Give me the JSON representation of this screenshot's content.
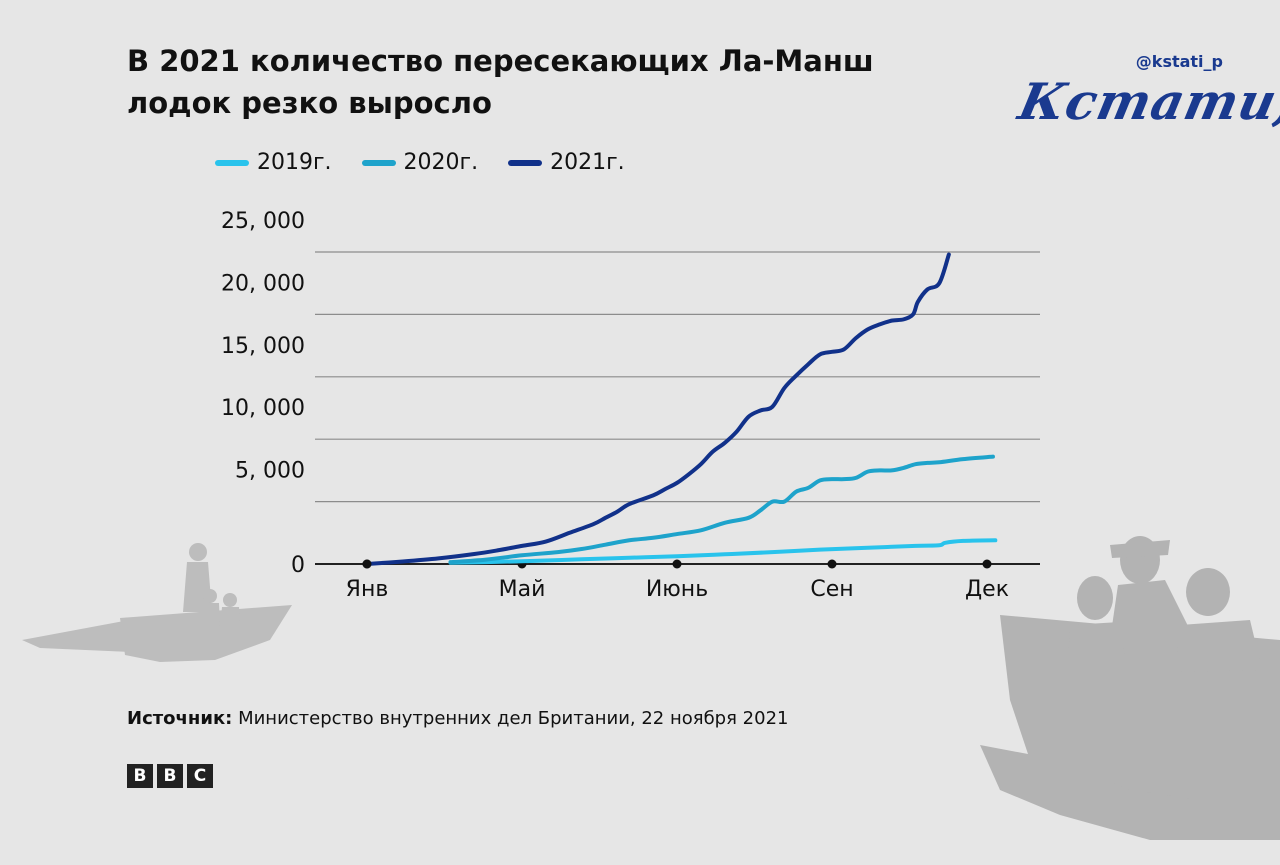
{
  "header": {
    "title_line1": "В 2021 количество пересекающих Ла-Манш",
    "title_line2": "лодок резко выросло",
    "handle": "@kstati_p",
    "logo": "Кстати,"
  },
  "footer": {
    "source_label": "Источник:",
    "source_text": " Министерство внутренних дел Британии, 22 ноября 2021",
    "bbc_letters": [
      "B",
      "B",
      "C"
    ]
  },
  "chart_data": {
    "type": "line",
    "title": "",
    "xlabel": "",
    "ylabel": "",
    "ylim": [
      0,
      25000
    ],
    "yticks": [
      0,
      5000,
      10000,
      15000,
      20000,
      25000
    ],
    "ytick_labels": [
      "0",
      "5, 000",
      "10, 000",
      "15, 000",
      "20, 000",
      "25, 000"
    ],
    "xticks": [
      {
        "label": "Янв",
        "week": 0
      },
      {
        "label": "Май",
        "week": 13
      },
      {
        "label": "Июнь",
        "week": 26
      },
      {
        "label": "Сен",
        "week": 39
      },
      {
        "label": "Дек",
        "week": 52
      }
    ],
    "grid": true,
    "legend_position": "top-left",
    "series": [
      {
        "name": "2019г.",
        "color": "#29c3ec",
        "x": [
          7,
          10,
          14,
          18,
          22,
          26,
          30,
          34,
          38,
          42,
          46,
          48,
          48.5,
          50,
          52.7
        ],
        "y": [
          100,
          150,
          250,
          380,
          500,
          620,
          780,
          950,
          1150,
          1300,
          1450,
          1500,
          1700,
          1850,
          1900
        ]
      },
      {
        "name": "2020г.",
        "color": "#1ea3cb",
        "x": [
          7,
          10,
          13,
          16,
          18,
          20,
          22,
          24,
          26,
          28,
          30,
          32,
          33,
          34,
          35,
          36,
          37,
          38,
          39,
          40,
          41,
          42,
          43,
          44,
          45,
          46,
          47,
          48,
          50,
          52.5
        ],
        "y": [
          150,
          350,
          700,
          950,
          1200,
          1550,
          1900,
          2100,
          2400,
          2700,
          3300,
          3700,
          4300,
          5000,
          5000,
          5800,
          6100,
          6700,
          6800,
          6800,
          6900,
          7400,
          7500,
          7500,
          7700,
          8000,
          8100,
          8150,
          8400,
          8600
        ]
      },
      {
        "name": "2021г.",
        "color": "#11318a",
        "x": [
          0,
          3,
          6,
          9,
          11,
          13,
          15,
          17,
          19,
          20,
          21,
          22,
          24,
          25,
          26,
          27,
          28,
          29,
          30,
          31,
          32,
          33,
          34,
          35,
          36,
          37,
          38,
          39,
          40,
          41,
          42,
          43,
          44,
          45,
          45.8,
          46.2,
          47,
          48,
          48.8
        ],
        "y": [
          0,
          200,
          450,
          800,
          1100,
          1450,
          1800,
          2500,
          3200,
          3700,
          4200,
          4800,
          5500,
          6000,
          6500,
          7200,
          8000,
          9000,
          9700,
          10600,
          11800,
          12300,
          12600,
          14100,
          15100,
          16000,
          16800,
          17000,
          17200,
          18100,
          18800,
          19200,
          19500,
          19600,
          20000,
          21000,
          22000,
          22500,
          24800
        ]
      }
    ]
  }
}
